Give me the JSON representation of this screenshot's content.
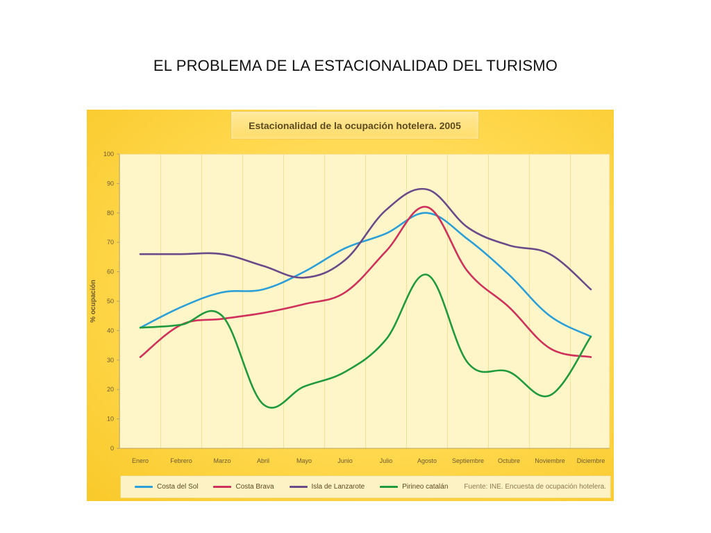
{
  "slide": {
    "title": "EL PROBLEMA DE LA ESTACIONALIDAD DEL TURISMO"
  },
  "chart_data": {
    "type": "line",
    "title": "Estacionalidad de la ocupación hotelera. 2005",
    "xlabel": "",
    "ylabel": "% ocupación",
    "ylim": [
      0,
      100
    ],
    "yticks": [
      "0",
      "10",
      "20",
      "30",
      "40",
      "50",
      "60",
      "70",
      "80",
      "90",
      "100"
    ],
    "categories": [
      "Enero",
      "Febrero",
      "Marzo",
      "Abril",
      "Mayo",
      "Junio",
      "Julio",
      "Agosto",
      "Septiembre",
      "Octubre",
      "Noviembre",
      "Diciembre"
    ],
    "grid": "vertical",
    "legend_position": "bottom",
    "source": "Fuente: INE. Encuesta de ocupación hotelera.",
    "series": [
      {
        "name": "Costa del Sol",
        "color": "#2a9fd8",
        "values": [
          41,
          48,
          53,
          54,
          60,
          68,
          73,
          80,
          71,
          59,
          45,
          38
        ]
      },
      {
        "name": "Costa Brava",
        "color": "#d0305a",
        "values": [
          31,
          42,
          44,
          46,
          49,
          53,
          67,
          82,
          60,
          48,
          34,
          31
        ]
      },
      {
        "name": "Isla de Lanzarote",
        "color": "#6b4a8a",
        "values": [
          66,
          66,
          66,
          62,
          58,
          64,
          81,
          88,
          75,
          69,
          66,
          54
        ]
      },
      {
        "name": "Pirineo catalán",
        "color": "#1f9a3c",
        "values": [
          41,
          42,
          45,
          15,
          21,
          26,
          37,
          59,
          29,
          26,
          18,
          38
        ]
      }
    ]
  }
}
